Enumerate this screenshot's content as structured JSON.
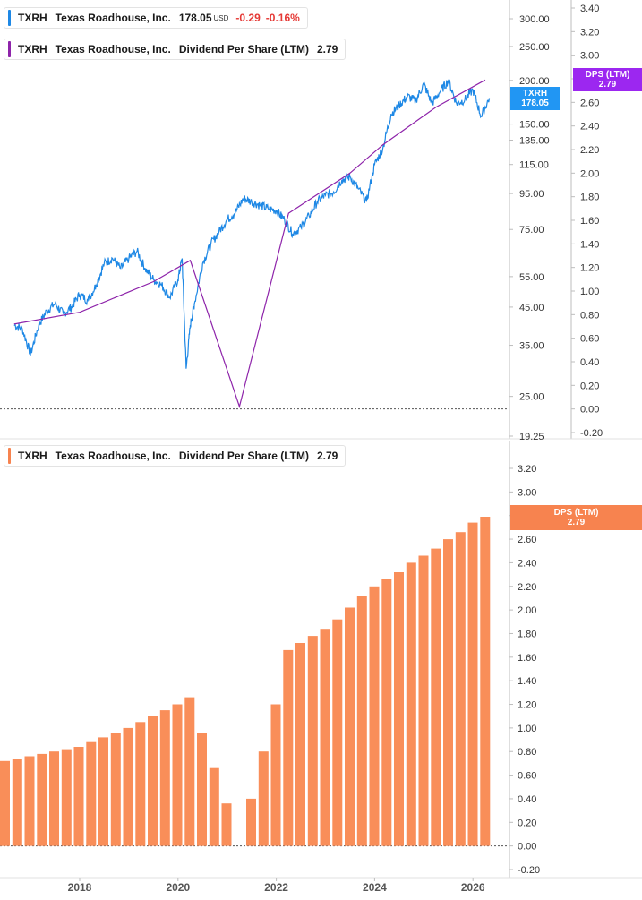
{
  "legends": {
    "top_price": {
      "ticker": "TXRH",
      "name": "Texas Roadhouse, Inc.",
      "price": "178.05",
      "currency": "USD",
      "change": "-0.29",
      "change_pct": "-0.16%"
    },
    "top_dps": {
      "ticker": "TXRH",
      "name": "Texas Roadhouse, Inc.",
      "metric": "Dividend Per Share (LTM)",
      "value": "2.79"
    },
    "bottom_dps": {
      "ticker": "TXRH",
      "name": "Texas Roadhouse, Inc.",
      "metric": "Dividend Per Share (LTM)",
      "value": "2.79"
    }
  },
  "tags": {
    "txrh": {
      "line1": "TXRH",
      "line2": "178.05",
      "color": "#2196f3"
    },
    "dps_top": {
      "line1": "DPS (LTM)",
      "line2": "2.79",
      "color": "#9c27f0"
    },
    "dps_bottom": {
      "line1": "DPS (LTM)",
      "line2": "2.79",
      "color": "#f7834f"
    }
  },
  "colors": {
    "price_line": "#1e88e5",
    "dps_line": "#8e24aa",
    "bars": "#f98e59",
    "legend_price": "#1e88e5",
    "legend_dps_top": "#8e24aa",
    "legend_dps_bottom": "#f7834f"
  },
  "chart_data": [
    {
      "type": "line",
      "series": [
        {
          "name": "Texas Roadhouse, Inc.",
          "scale": "log",
          "x": [
            "2016-09",
            "2016-11",
            "2017-01",
            "2017-03",
            "2017-05",
            "2017-07",
            "2017-09",
            "2017-11",
            "2018-01",
            "2018-03",
            "2018-05",
            "2018-07",
            "2018-09",
            "2018-11",
            "2019-01",
            "2019-03",
            "2019-05",
            "2019-07",
            "2019-09",
            "2019-11",
            "2020-01",
            "2020-02",
            "2020-03",
            "2020-04",
            "2020-05",
            "2020-07",
            "2020-09",
            "2020-11",
            "2021-01",
            "2021-03",
            "2021-05",
            "2021-07",
            "2021-09",
            "2021-11",
            "2022-01",
            "2022-03",
            "2022-05",
            "2022-07",
            "2022-09",
            "2022-11",
            "2023-01",
            "2023-03",
            "2023-05",
            "2023-07",
            "2023-09",
            "2023-11",
            "2024-01",
            "2024-03",
            "2024-05",
            "2024-07",
            "2024-09",
            "2024-11",
            "2025-01",
            "2025-03",
            "2025-05",
            "2025-07",
            "2025-09",
            "2025-11",
            "2026-01",
            "2026-03",
            "2026-05"
          ],
          "values": [
            40,
            39,
            33,
            40,
            44,
            46,
            43,
            45,
            49,
            47,
            52,
            60,
            62,
            58,
            62,
            65,
            58,
            54,
            52,
            48,
            54,
            62,
            30,
            40,
            46,
            60,
            68,
            74,
            80,
            84,
            92,
            90,
            88,
            86,
            85,
            80,
            73,
            76,
            82,
            90,
            94,
            96,
            104,
            106,
            98,
            90,
            115,
            128,
            160,
            170,
            180,
            175,
            195,
            172,
            186,
            200,
            172,
            176,
            188,
            158,
            178.05
          ],
          "y_ticks": [
            19.25,
            25,
            35,
            45,
            55,
            75,
            95,
            115,
            135,
            150,
            200,
            250,
            300
          ]
        },
        {
          "name": "Dividend Per Share (LTM)",
          "x": [
            "2016-09",
            "2018-01",
            "2019-07",
            "2020-04",
            "2021-04",
            "2022-04",
            "2023-07",
            "2024-03",
            "2025-04",
            "2026-04"
          ],
          "values": [
            0.72,
            0.82,
            1.08,
            1.26,
            0.02,
            1.66,
            2.0,
            2.24,
            2.56,
            2.79
          ],
          "y_ticks": [
            -0.2,
            0,
            0.2,
            0.4,
            0.6,
            0.8,
            1.0,
            1.2,
            1.4,
            1.6,
            1.8,
            2.0,
            2.2,
            2.4,
            2.6,
            2.8,
            3.0,
            3.2,
            3.4
          ]
        }
      ]
    },
    {
      "type": "bar",
      "series": [
        {
          "name": "Dividend Per Share (LTM)",
          "categories": [
            "2016Q3",
            "2016Q4",
            "2017Q1",
            "2017Q2",
            "2017Q3",
            "2017Q4",
            "2018Q1",
            "2018Q2",
            "2018Q3",
            "2018Q4",
            "2019Q1",
            "2019Q2",
            "2019Q3",
            "2019Q4",
            "2020Q1",
            "2020Q2",
            "2020Q3",
            "2020Q4",
            "2021Q1",
            "2021Q2",
            "2021Q3",
            "2021Q4",
            "2022Q1",
            "2022Q2",
            "2022Q3",
            "2022Q4",
            "2023Q1",
            "2023Q2",
            "2023Q3",
            "2023Q4",
            "2024Q1",
            "2024Q2",
            "2024Q3",
            "2024Q4",
            "2025Q1",
            "2025Q2",
            "2025Q3",
            "2025Q4",
            "2026Q1",
            "2026Q2"
          ],
          "values": [
            0.72,
            0.74,
            0.76,
            0.78,
            0.8,
            0.82,
            0.84,
            0.88,
            0.92,
            0.96,
            1.0,
            1.05,
            1.1,
            1.15,
            1.2,
            1.26,
            0.96,
            0.66,
            0.36,
            0,
            0.4,
            0.8,
            1.2,
            1.66,
            1.72,
            1.78,
            1.84,
            1.92,
            2.02,
            2.12,
            2.2,
            2.26,
            2.32,
            2.4,
            2.46,
            2.52,
            2.6,
            2.66,
            2.74,
            2.79
          ]
        }
      ],
      "y_ticks": [
        -0.2,
        0,
        0.2,
        0.4,
        0.6,
        0.8,
        1.0,
        1.2,
        1.4,
        1.6,
        1.8,
        2.0,
        2.2,
        2.4,
        2.6,
        2.8,
        3.0,
        3.2
      ]
    }
  ],
  "x_axis": {
    "labels": [
      "2018",
      "2020",
      "2022",
      "2024",
      "2026"
    ]
  }
}
